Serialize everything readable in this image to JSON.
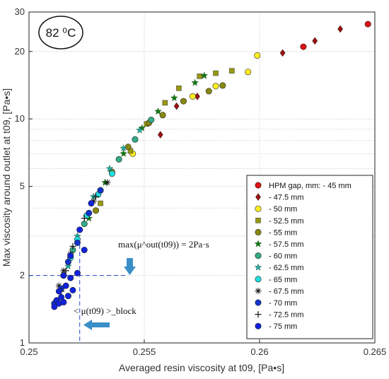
{
  "chart_data": {
    "type": "scatter",
    "xlabel": "Averaged resin viscosity at t09, [Pa•s]",
    "ylabel": "Max viscosity around outlet at t09, [Pa•s]",
    "xlim": [
      0.25,
      0.265
    ],
    "ylim": [
      1,
      30
    ],
    "yscale": "log",
    "grid": true,
    "legend_position": "bottom-right",
    "x_ticks": [
      "0.25",
      "0.255",
      "0.26",
      "0.265"
    ],
    "y_ticks": [
      "1",
      "2",
      "5",
      "10",
      "20",
      "30"
    ],
    "temperature_badge": "82 ⁰C",
    "annotations": {
      "max_text": "max(μ^out(t09)) = 2Pa·s",
      "avg_text": "< μ(t09) >_block"
    },
    "series": [
      {
        "name": "HPM gap, mm: - 45 mm",
        "marker": "circle",
        "color": "#dd1111",
        "x": [
          0.2619,
          0.2647
        ],
        "y": [
          21,
          26.5
        ]
      },
      {
        "name": "- 47.5 mm",
        "marker": "diamond",
        "color": "#991111",
        "x": [
          0.261,
          0.2624,
          0.2635,
          0.2573,
          0.2564,
          0.2557
        ],
        "y": [
          19.7,
          22.3,
          25.2,
          12.6,
          11.4,
          8.5
        ]
      },
      {
        "name": "- 50 mm",
        "marker": "circle",
        "color": "#ffee22",
        "x": [
          0.2599,
          0.2595,
          0.2581,
          0.2571,
          0.2545
        ],
        "y": [
          19.2,
          16.2,
          14.0,
          12.6,
          7.0
        ]
      },
      {
        "name": "- 52.5 mm",
        "marker": "square",
        "color": "#999911",
        "x": [
          0.2588,
          0.2581,
          0.2574,
          0.2565,
          0.2559,
          0.2551,
          0.2544,
          0.2531
        ],
        "y": [
          16.4,
          16.0,
          15.5,
          13.7,
          11.8,
          9.5,
          7.2,
          4.2
        ]
      },
      {
        "name": "- 55 mm",
        "marker": "circle",
        "color": "#888811",
        "x": [
          0.2584,
          0.2578,
          0.2567,
          0.2558,
          0.2552,
          0.2543,
          0.2536,
          0.2529
        ],
        "y": [
          14.1,
          13.3,
          12.0,
          10.4,
          9.6,
          7.5,
          5.8,
          3.9
        ]
      },
      {
        "name": "- 57.5 mm",
        "marker": "star",
        "color": "#117711",
        "x": [
          0.2576,
          0.2572,
          0.2563,
          0.2556,
          0.2549,
          0.2541,
          0.2533,
          0.2526
        ],
        "y": [
          15.6,
          14.5,
          12.4,
          10.8,
          9.1,
          7.0,
          5.2,
          3.6
        ]
      },
      {
        "name": "- 60 mm",
        "marker": "circle",
        "color": "#33aa88",
        "x": [
          0.2553,
          0.2546,
          0.2539,
          0.2531,
          0.2524,
          0.2519
        ],
        "y": [
          9.9,
          8.1,
          6.6,
          4.8,
          3.4,
          2.6
        ]
      },
      {
        "name": "- 62.5 mm",
        "marker": "star",
        "color": "#22aaaa",
        "x": [
          0.2548,
          0.2541,
          0.2535,
          0.2528,
          0.2521,
          0.2517
        ],
        "y": [
          8.9,
          7.4,
          6.0,
          4.5,
          3.0,
          2.2
        ]
      },
      {
        "name": "- 65 mm",
        "marker": "circle",
        "color": "#22dddd",
        "x": [
          0.2536,
          0.253,
          0.2525,
          0.2521,
          0.2518,
          0.2515
        ],
        "y": [
          5.7,
          4.6,
          3.7,
          2.9,
          2.4,
          2.0
        ]
      },
      {
        "name": "- 67.5 mm",
        "marker": "asterisk",
        "color": "#111111",
        "x": [
          0.2534,
          0.2528,
          0.2522,
          0.2518,
          0.2515,
          0.2513
        ],
        "y": [
          5.2,
          4.3,
          3.2,
          2.5,
          2.1,
          1.8
        ]
      },
      {
        "name": "- 70 mm",
        "marker": "circle",
        "color": "#1133cc",
        "x": [
          0.2531,
          0.2526,
          0.2521,
          0.2517,
          0.2514,
          0.2511
        ],
        "y": [
          4.8,
          3.8,
          2.8,
          2.3,
          1.75,
          1.5
        ]
      },
      {
        "name": "- 72.5 mm",
        "marker": "plus",
        "color": "#111111",
        "x": [
          0.2529,
          0.2524,
          0.2519,
          0.2516,
          0.2514,
          0.2512
        ],
        "y": [
          4.5,
          3.6,
          2.7,
          2.1,
          1.7,
          1.55
        ]
      },
      {
        "name": "- 75 mm",
        "marker": "circle",
        "color": "#1122dd",
        "x": [
          0.2527,
          0.2522,
          0.2518,
          0.2515,
          0.2513,
          0.2512,
          0.2514,
          0.2516,
          0.2518,
          0.2511,
          0.2513,
          0.2515,
          0.2517,
          0.2519,
          0.2521,
          0.2524
        ],
        "y": [
          4.2,
          3.2,
          2.45,
          2.0,
          1.7,
          1.55,
          1.6,
          1.8,
          1.95,
          1.45,
          1.5,
          1.52,
          1.62,
          1.72,
          2.05,
          2.6
        ]
      }
    ]
  }
}
